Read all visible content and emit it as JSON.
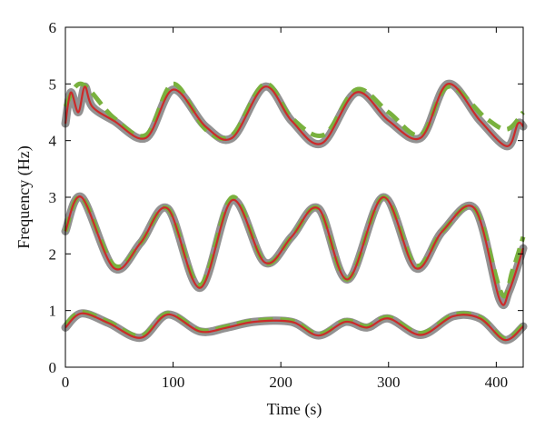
{
  "chart_data": {
    "type": "line",
    "xlabel": "Time (s)",
    "ylabel": "Frequency (Hz)",
    "xlim": [
      0,
      425
    ],
    "ylim": [
      0,
      6
    ],
    "x_ticks": [
      0,
      100,
      200,
      300,
      400
    ],
    "y_ticks": [
      0,
      1,
      2,
      3,
      4,
      5,
      6
    ],
    "grid": false,
    "legend": "none",
    "colors": {
      "raw": "#7f7f7f",
      "estimate": "#cc2a2a",
      "reference": "#79b13e"
    },
    "series": [
      {
        "role": "reference",
        "style": "dashed",
        "color": "#79b13e",
        "band": "high",
        "x": [
          0,
          15,
          45,
          75,
          100,
          130,
          155,
          185,
          210,
          240,
          270,
          300,
          330,
          355,
          390,
          410,
          425
        ],
        "y": [
          4.6,
          5.0,
          4.4,
          4.1,
          5.0,
          4.2,
          4.1,
          5.0,
          4.4,
          4.1,
          4.9,
          4.5,
          4.1,
          4.95,
          4.4,
          4.2,
          4.5
        ]
      },
      {
        "role": "estimate",
        "style": "solid",
        "color": "#cc2a2a",
        "band": "high",
        "x": [
          0,
          5,
          12,
          18,
          25,
          45,
          75,
          100,
          130,
          155,
          185,
          210,
          238,
          270,
          300,
          330,
          355,
          385,
          410,
          420,
          425
        ],
        "y": [
          4.3,
          4.85,
          4.5,
          4.95,
          4.6,
          4.35,
          4.05,
          4.9,
          4.25,
          4.05,
          4.95,
          4.35,
          3.95,
          4.85,
          4.35,
          4.05,
          5.0,
          4.35,
          3.9,
          4.3,
          4.25
        ]
      },
      {
        "role": "reference",
        "style": "dashed",
        "color": "#79b13e",
        "band": "middle",
        "x": [
          0,
          15,
          45,
          70,
          95,
          125,
          155,
          185,
          210,
          235,
          262,
          295,
          325,
          350,
          380,
          405,
          415,
          425
        ],
        "y": [
          2.4,
          3.0,
          1.8,
          2.2,
          2.8,
          1.45,
          3.0,
          1.85,
          2.3,
          2.8,
          1.55,
          3.0,
          1.8,
          2.4,
          2.8,
          1.3,
          1.7,
          2.3
        ]
      },
      {
        "role": "estimate",
        "style": "solid",
        "color": "#cc2a2a",
        "band": "middle",
        "x": [
          0,
          15,
          45,
          70,
          95,
          125,
          155,
          185,
          210,
          235,
          262,
          295,
          325,
          350,
          380,
          403,
          412,
          425
        ],
        "y": [
          2.4,
          3.0,
          1.75,
          2.2,
          2.8,
          1.4,
          2.95,
          1.85,
          2.3,
          2.8,
          1.55,
          3.0,
          1.75,
          2.4,
          2.8,
          1.2,
          1.35,
          2.1
        ]
      },
      {
        "role": "reference",
        "style": "dashed",
        "color": "#79b13e",
        "band": "low",
        "x": [
          0,
          15,
          40,
          70,
          95,
          125,
          150,
          175,
          210,
          235,
          260,
          280,
          300,
          330,
          360,
          385,
          408,
          425
        ],
        "y": [
          0.75,
          0.97,
          0.8,
          0.55,
          0.95,
          0.65,
          0.72,
          0.82,
          0.82,
          0.58,
          0.82,
          0.72,
          0.88,
          0.6,
          0.92,
          0.88,
          0.5,
          0.75
        ]
      },
      {
        "role": "estimate",
        "style": "solid",
        "color": "#cc2a2a",
        "band": "low",
        "x": [
          0,
          15,
          40,
          70,
          95,
          125,
          150,
          175,
          210,
          235,
          260,
          280,
          300,
          330,
          360,
          385,
          408,
          425
        ],
        "y": [
          0.7,
          0.95,
          0.78,
          0.52,
          0.93,
          0.63,
          0.7,
          0.8,
          0.8,
          0.56,
          0.8,
          0.7,
          0.86,
          0.57,
          0.9,
          0.86,
          0.48,
          0.72
        ]
      }
    ]
  }
}
